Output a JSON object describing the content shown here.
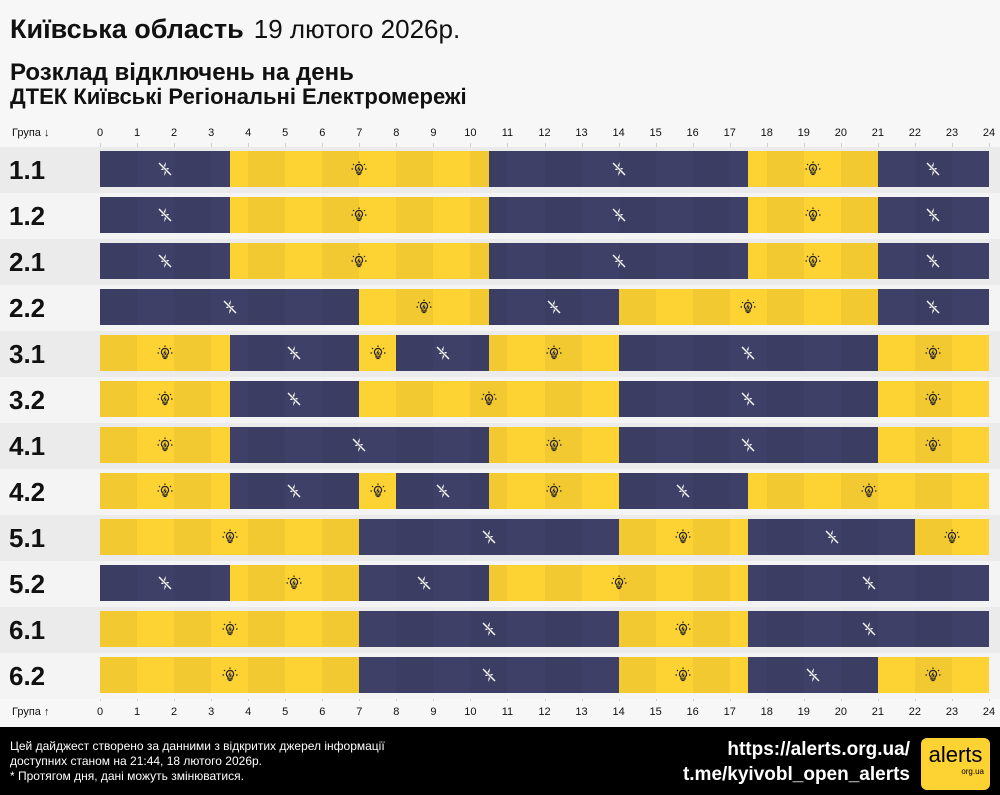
{
  "header": {
    "region": "Київська область",
    "date": "19 лютого 2026р.",
    "subtitle": "Розклад відключень на день",
    "company": "ДТЕК Київські Регіональні Електромережі"
  },
  "axis": {
    "top_label": "Група ↓",
    "bottom_label": "Група ↑",
    "hours": [
      "0",
      "1",
      "2",
      "3",
      "4",
      "5",
      "6",
      "7",
      "8",
      "9",
      "10",
      "11",
      "12",
      "13",
      "14",
      "15",
      "16",
      "17",
      "18",
      "19",
      "20",
      "21",
      "22",
      "23",
      "24"
    ]
  },
  "colors": {
    "power_on": "#fdd333",
    "power_off": "#3f4068"
  },
  "icons": {
    "on": "lightbulb-icon",
    "off": "power-off-icon"
  },
  "groups": [
    {
      "name": "1.1",
      "segments": [
        [
          0,
          3.5,
          "off"
        ],
        [
          3.5,
          10.5,
          "on"
        ],
        [
          10.5,
          17.5,
          "off"
        ],
        [
          17.5,
          21,
          "on"
        ],
        [
          21,
          24,
          "off"
        ]
      ]
    },
    {
      "name": "1.2",
      "segments": [
        [
          0,
          3.5,
          "off"
        ],
        [
          3.5,
          10.5,
          "on"
        ],
        [
          10.5,
          17.5,
          "off"
        ],
        [
          17.5,
          21,
          "on"
        ],
        [
          21,
          24,
          "off"
        ]
      ]
    },
    {
      "name": "2.1",
      "segments": [
        [
          0,
          3.5,
          "off"
        ],
        [
          3.5,
          10.5,
          "on"
        ],
        [
          10.5,
          17.5,
          "off"
        ],
        [
          17.5,
          21,
          "on"
        ],
        [
          21,
          24,
          "off"
        ]
      ]
    },
    {
      "name": "2.2",
      "segments": [
        [
          0,
          7,
          "off"
        ],
        [
          7,
          10.5,
          "on"
        ],
        [
          10.5,
          14,
          "off"
        ],
        [
          14,
          21,
          "on"
        ],
        [
          21,
          24,
          "off"
        ]
      ]
    },
    {
      "name": "3.1",
      "segments": [
        [
          0,
          3.5,
          "on"
        ],
        [
          3.5,
          7,
          "off"
        ],
        [
          7,
          8,
          "on"
        ],
        [
          8,
          10.5,
          "off"
        ],
        [
          10.5,
          14,
          "on"
        ],
        [
          14,
          21,
          "off"
        ],
        [
          21,
          24,
          "on"
        ]
      ]
    },
    {
      "name": "3.2",
      "segments": [
        [
          0,
          3.5,
          "on"
        ],
        [
          3.5,
          7,
          "off"
        ],
        [
          7,
          14,
          "on"
        ],
        [
          14,
          21,
          "off"
        ],
        [
          21,
          24,
          "on"
        ]
      ]
    },
    {
      "name": "4.1",
      "segments": [
        [
          0,
          3.5,
          "on"
        ],
        [
          3.5,
          10.5,
          "off"
        ],
        [
          10.5,
          14,
          "on"
        ],
        [
          14,
          21,
          "off"
        ],
        [
          21,
          24,
          "on"
        ]
      ]
    },
    {
      "name": "4.2",
      "segments": [
        [
          0,
          3.5,
          "on"
        ],
        [
          3.5,
          7,
          "off"
        ],
        [
          7,
          8,
          "on"
        ],
        [
          8,
          10.5,
          "off"
        ],
        [
          10.5,
          14,
          "on"
        ],
        [
          14,
          17.5,
          "off"
        ],
        [
          17.5,
          24,
          "on"
        ]
      ]
    },
    {
      "name": "5.1",
      "segments": [
        [
          0,
          7,
          "on"
        ],
        [
          7,
          14,
          "off"
        ],
        [
          14,
          17.5,
          "on"
        ],
        [
          17.5,
          22,
          "off"
        ],
        [
          22,
          24,
          "on"
        ]
      ]
    },
    {
      "name": "5.2",
      "segments": [
        [
          0,
          3.5,
          "off"
        ],
        [
          3.5,
          7,
          "on"
        ],
        [
          7,
          10.5,
          "off"
        ],
        [
          10.5,
          17.5,
          "on"
        ],
        [
          17.5,
          24,
          "off"
        ]
      ]
    },
    {
      "name": "6.1",
      "segments": [
        [
          0,
          7,
          "on"
        ],
        [
          7,
          14,
          "off"
        ],
        [
          14,
          17.5,
          "on"
        ],
        [
          17.5,
          24,
          "off"
        ]
      ]
    },
    {
      "name": "6.2",
      "segments": [
        [
          0,
          7,
          "on"
        ],
        [
          7,
          14,
          "off"
        ],
        [
          14,
          17.5,
          "on"
        ],
        [
          17.5,
          21,
          "off"
        ],
        [
          21,
          24,
          "on"
        ]
      ]
    }
  ],
  "footer": {
    "line1": "Цей дайджест створено за данними з відкритих джерел інформації",
    "line2": "доступних станом на 21:44, 18 лютого 2026р.",
    "line3": "* Протягом дня, дані можуть змінюватися.",
    "url": "https://alerts.org.ua/",
    "telegram": "t.me/kyivobl_open_alerts",
    "logo_text": "alerts",
    "logo_sub": "org.ua"
  }
}
